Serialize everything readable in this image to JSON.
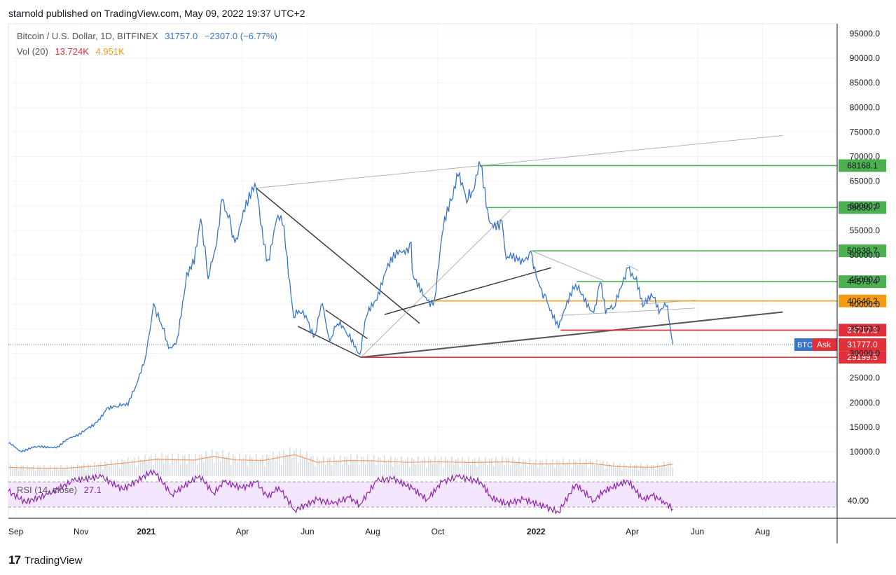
{
  "header": {
    "published_by": "starnold published on TradingView.com, May 09, 2022 19:37 UTC+2"
  },
  "legend": {
    "symbol": "Bitcoin / U.S. Dollar, 1D, BITFINEX",
    "last": "31757.0",
    "change": "−2307.0 (−6.77%)",
    "vol_label": "Vol (20)",
    "vol_value": "13.724K",
    "vol_ma": "4.951K",
    "rsi_label": "RSI (14, close)",
    "rsi_value": "27.1"
  },
  "footer": {
    "brand": "TradingView",
    "logo": "tradingview-logo-icon"
  },
  "colors": {
    "price": "#3a74c9",
    "support_red": "#e0303a",
    "resist_green": "#4caf50",
    "orange": "#f39c12",
    "rsi": "#8e24aa",
    "rsi_band": "#f3e5fc",
    "volume_ma": "#f2955a",
    "grid": "#f0f3fa"
  },
  "chart_data": {
    "type": "line",
    "title": "Bitcoin / U.S. Dollar, 1D, BITFINEX",
    "y_axis": {
      "ylim": [
        5000,
        97000
      ],
      "ticks": [
        "95000.0",
        "90000.0",
        "85000.0",
        "80000.0",
        "75000.0",
        "70000.0",
        "65000.0",
        "60000.0",
        "55000.0",
        "50000.0",
        "45000.0",
        "40000.0",
        "35000.0",
        "30000.0",
        "25000.0",
        "20000.0",
        "15000.0",
        "10000.0"
      ],
      "tick_values": [
        95000,
        90000,
        85000,
        80000,
        75000,
        70000,
        65000,
        60000,
        55000,
        50000,
        45000,
        40000,
        35000,
        30000,
        25000,
        20000,
        15000,
        10000
      ]
    },
    "x_axis": {
      "ticks": [
        "Sep",
        "Nov",
        "2021",
        "Apr",
        "Jun",
        "Aug",
        "Oct",
        "2022",
        "Apr",
        "Jun",
        "Aug"
      ],
      "tick_dates": [
        "2020-09-01",
        "2020-11-01",
        "2021-01-01",
        "2021-04-01",
        "2021-06-01",
        "2021-08-01",
        "2021-10-01",
        "2022-01-01",
        "2022-04-01",
        "2022-06-01",
        "2022-08-01"
      ],
      "range": [
        "2020-08-25",
        "2022-09-30"
      ]
    },
    "series": [
      {
        "name": "Bitcoin / U.S. Dollar",
        "points": [
          [
            "2020-08-25",
            11700
          ],
          [
            "2020-09-05",
            10200
          ],
          [
            "2020-09-20",
            10900
          ],
          [
            "2020-10-10",
            11100
          ],
          [
            "2020-10-25",
            13100
          ],
          [
            "2020-11-05",
            14500
          ],
          [
            "2020-11-15",
            16000
          ],
          [
            "2020-11-25",
            18800
          ],
          [
            "2020-12-05",
            19100
          ],
          [
            "2020-12-15",
            19400
          ],
          [
            "2020-12-22",
            23200
          ],
          [
            "2020-12-31",
            28900
          ],
          [
            "2021-01-08",
            40200
          ],
          [
            "2021-01-15",
            36000
          ],
          [
            "2021-01-22",
            31000
          ],
          [
            "2021-01-30",
            33100
          ],
          [
            "2021-02-08",
            46500
          ],
          [
            "2021-02-15",
            48100
          ],
          [
            "2021-02-21",
            57400
          ],
          [
            "2021-02-28",
            45100
          ],
          [
            "2021-03-08",
            52300
          ],
          [
            "2021-03-13",
            61300
          ],
          [
            "2021-03-20",
            58100
          ],
          [
            "2021-03-25",
            52500
          ],
          [
            "2021-04-02",
            59100
          ],
          [
            "2021-04-14",
            63600
          ],
          [
            "2021-04-18",
            56200
          ],
          [
            "2021-04-25",
            49100
          ],
          [
            "2021-05-03",
            57200
          ],
          [
            "2021-05-10",
            55900
          ],
          [
            "2021-05-13",
            49700
          ],
          [
            "2021-05-19",
            37300
          ],
          [
            "2021-05-25",
            38200
          ],
          [
            "2021-06-01",
            36700
          ],
          [
            "2021-06-08",
            33600
          ],
          [
            "2021-06-15",
            40100
          ],
          [
            "2021-06-22",
            32500
          ],
          [
            "2021-06-29",
            36000
          ],
          [
            "2021-07-08",
            33800
          ],
          [
            "2021-07-20",
            29800
          ],
          [
            "2021-07-26",
            37300
          ],
          [
            "2021-08-05",
            40800
          ],
          [
            "2021-08-14",
            47100
          ],
          [
            "2021-08-22",
            49300
          ],
          [
            "2021-09-06",
            52600
          ],
          [
            "2021-09-07",
            46800
          ],
          [
            "2021-09-21",
            40700
          ],
          [
            "2021-09-28",
            41000
          ],
          [
            "2021-10-06",
            55300
          ],
          [
            "2021-10-15",
            61500
          ],
          [
            "2021-10-20",
            66000
          ],
          [
            "2021-10-28",
            60600
          ],
          [
            "2021-11-03",
            63000
          ],
          [
            "2021-11-10",
            68000
          ],
          [
            "2021-11-18",
            56900
          ],
          [
            "2021-11-30",
            57000
          ],
          [
            "2021-12-04",
            49200
          ],
          [
            "2021-12-15",
            48800
          ],
          [
            "2021-12-27",
            50800
          ],
          [
            "2022-01-05",
            43400
          ],
          [
            "2022-01-10",
            41800
          ],
          [
            "2022-01-22",
            35100
          ],
          [
            "2022-02-07",
            44000
          ],
          [
            "2022-02-10",
            43800
          ],
          [
            "2022-02-24",
            38300
          ],
          [
            "2022-03-02",
            44400
          ],
          [
            "2022-03-07",
            38000
          ],
          [
            "2022-03-15",
            39300
          ],
          [
            "2022-03-28",
            47400
          ],
          [
            "2022-04-05",
            45500
          ],
          [
            "2022-04-11",
            39500
          ],
          [
            "2022-04-20",
            41500
          ],
          [
            "2022-04-26",
            38100
          ],
          [
            "2022-05-04",
            39700
          ],
          [
            "2022-05-06",
            36000
          ],
          [
            "2022-05-09",
            31757
          ]
        ]
      }
    ],
    "price_levels": [
      {
        "value": 68168.1,
        "label": "68168.1",
        "color": "#4caf50",
        "from": "2021-11-10"
      },
      {
        "value": 59636.7,
        "label": "59636.7",
        "color": "#4caf50",
        "from": "2021-11-16"
      },
      {
        "value": 50838.7,
        "label": "50838.7",
        "color": "#4caf50",
        "from": "2021-12-28"
      },
      {
        "value": 44573.4,
        "label": "44573.4",
        "color": "#4caf50",
        "from": "2022-02-08"
      },
      {
        "value": 40646.2,
        "label": "40646.2",
        "color": "#f39c12",
        "from": "2021-09-28"
      },
      {
        "value": 34717.3,
        "label": "34717.3",
        "color": "#e0303a",
        "from": "2022-01-24"
      },
      {
        "value": 29199.5,
        "label": "29199.5",
        "color": "#e0303a",
        "from": "2021-07-21"
      }
    ],
    "current_price": {
      "value": 31777.0,
      "label": "31777.0",
      "ticker_tag": "BTC",
      "ask_tag": "Ask"
    },
    "trendlines": [
      {
        "from": [
          "2021-04-14",
          63600
        ],
        "to": [
          "2022-08-20",
          74300
        ],
        "color": "#aaaaaa",
        "style": "thin"
      },
      {
        "from": [
          "2021-04-14",
          63600
        ],
        "to": [
          "2021-09-14",
          36100
        ],
        "color": "#333333",
        "style": "medium"
      },
      {
        "from": [
          "2021-06-18",
          38800
        ],
        "to": [
          "2021-07-27",
          33000
        ],
        "color": "#333333",
        "style": "medium"
      },
      {
        "from": [
          "2021-05-23",
          35500
        ],
        "to": [
          "2021-07-21",
          29200
        ],
        "color": "#333333",
        "style": "medium"
      },
      {
        "from": [
          "2021-07-21",
          29200
        ],
        "to": [
          "2021-12-08",
          59200
        ],
        "color": "#aaaaaa",
        "style": "thin"
      },
      {
        "from": [
          "2021-07-21",
          29200
        ],
        "to": [
          "2022-08-20",
          38400
        ],
        "color": "#555555",
        "style": "thick"
      },
      {
        "from": [
          "2021-08-12",
          37900
        ],
        "to": [
          "2022-01-15",
          47400
        ],
        "color": "#333333",
        "style": "medium"
      },
      {
        "from": [
          "2021-12-28",
          50838
        ],
        "to": [
          "2022-03-05",
          44800
        ],
        "color": "#aaaaaa",
        "style": "thin"
      },
      {
        "from": [
          "2022-01-23",
          37700
        ],
        "to": [
          "2022-05-30",
          39200
        ],
        "color": "#aaaaaa",
        "style": "thin"
      },
      {
        "from": [
          "2022-03-27",
          48000
        ],
        "to": [
          "2022-04-07",
          46800
        ],
        "color": "#aaaaaa",
        "style": "thin"
      },
      {
        "from": [
          "2022-04-08",
          40000
        ],
        "to": [
          "2022-05-30",
          40800
        ],
        "color": "#aaaaaa",
        "style": "thin"
      }
    ],
    "volume_ma": [
      [
        "2020-08-25",
        3600
      ],
      [
        "2020-09-20",
        3300
      ],
      [
        "2020-10-20",
        3300
      ],
      [
        "2020-11-20",
        4400
      ],
      [
        "2020-12-20",
        5800
      ],
      [
        "2021-01-10",
        6900
      ],
      [
        "2021-02-15",
        6600
      ],
      [
        "2021-03-05",
        8100
      ],
      [
        "2021-03-25",
        6700
      ],
      [
        "2021-04-20",
        6400
      ],
      [
        "2021-05-20",
        8800
      ],
      [
        "2021-06-10",
        5700
      ],
      [
        "2021-07-10",
        6400
      ],
      [
        "2021-08-01",
        6300
      ],
      [
        "2021-09-01",
        5700
      ],
      [
        "2021-10-01",
        5900
      ],
      [
        "2021-11-01",
        5600
      ],
      [
        "2021-12-05",
        5900
      ],
      [
        "2022-01-01",
        5000
      ],
      [
        "2022-01-30",
        5100
      ],
      [
        "2022-02-20",
        5300
      ],
      [
        "2022-03-20",
        3900
      ],
      [
        "2022-04-20",
        3600
      ],
      [
        "2022-05-09",
        4951
      ]
    ],
    "rsi": [
      [
        "2020-08-25",
        55
      ],
      [
        "2020-09-10",
        38
      ],
      [
        "2020-10-01",
        50
      ],
      [
        "2020-10-25",
        72
      ],
      [
        "2020-11-20",
        78
      ],
      [
        "2020-12-10",
        58
      ],
      [
        "2021-01-08",
        88
      ],
      [
        "2021-01-25",
        50
      ],
      [
        "2021-02-20",
        80
      ],
      [
        "2021-03-05",
        52
      ],
      [
        "2021-03-15",
        70
      ],
      [
        "2021-04-01",
        60
      ],
      [
        "2021-04-14",
        70
      ],
      [
        "2021-04-25",
        45
      ],
      [
        "2021-05-05",
        62
      ],
      [
        "2021-05-20",
        25
      ],
      [
        "2021-06-10",
        42
      ],
      [
        "2021-06-25",
        35
      ],
      [
        "2021-07-10",
        45
      ],
      [
        "2021-07-20",
        34
      ],
      [
        "2021-08-05",
        72
      ],
      [
        "2021-08-20",
        75
      ],
      [
        "2021-09-07",
        60
      ],
      [
        "2021-09-21",
        42
      ],
      [
        "2021-10-05",
        70
      ],
      [
        "2021-10-20",
        78
      ],
      [
        "2021-11-10",
        70
      ],
      [
        "2021-11-20",
        45
      ],
      [
        "2021-12-04",
        35
      ],
      [
        "2021-12-20",
        42
      ],
      [
        "2022-01-10",
        30
      ],
      [
        "2022-01-22",
        22
      ],
      [
        "2022-02-07",
        66
      ],
      [
        "2022-02-24",
        40
      ],
      [
        "2022-03-05",
        55
      ],
      [
        "2022-03-28",
        72
      ],
      [
        "2022-04-11",
        42
      ],
      [
        "2022-04-20",
        48
      ],
      [
        "2022-04-30",
        40
      ],
      [
        "2022-05-09",
        27.1
      ]
    ],
    "rsi_axis": {
      "ticks": [
        "40.00"
      ],
      "tick_values": [
        40
      ],
      "band": [
        30,
        70
      ]
    }
  }
}
